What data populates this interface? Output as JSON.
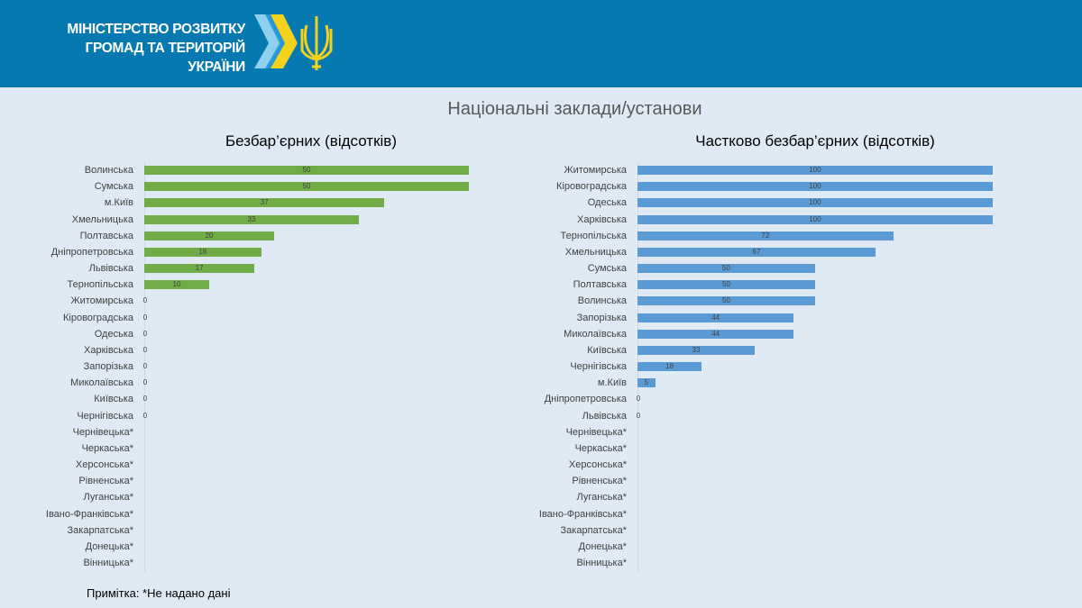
{
  "header": {
    "org_line1": "МІНІСТЕРСТВО РОЗВИТКУ",
    "org_line2": "ГРОМАД ТА ТЕРИТОРІЙ  УКРАЇНИ",
    "colors": {
      "bg": "#0679b0"
    }
  },
  "page_title": "Національні заклади/установи",
  "note": "Примітка: *Не надано дані",
  "chart_data": [
    {
      "type": "bar",
      "orientation": "horizontal",
      "title": "Безбар’єрних (відсотків)",
      "xlim": [
        0,
        50
      ],
      "color": "#70ad47",
      "categories": [
        "Волинська",
        "Сумська",
        "м.Київ",
        "Хмельницька",
        "Полтавська",
        "Дніпропетровська",
        "Львівська",
        "Тернопільська",
        "Житомирська",
        "Кіровоградська",
        "Одеська",
        "Харківська",
        "Запорізька",
        "Миколаївська",
        "Київська",
        "Чернігівська",
        "Чернівецька*",
        "Черкаська*",
        "Херсонська*",
        "Рівненська*",
        "Луганська*",
        "Івано-Франківська*",
        "Закарпатська*",
        "Донецька*",
        "Вінницька*"
      ],
      "values": [
        50,
        50,
        37,
        33,
        20,
        18,
        17,
        10,
        0,
        0,
        0,
        0,
        0,
        0,
        0,
        0,
        null,
        null,
        null,
        null,
        null,
        null,
        null,
        null,
        null
      ]
    },
    {
      "type": "bar",
      "orientation": "horizontal",
      "title": "Частково безбар’єрних (відсотків)",
      "xlim": [
        0,
        100
      ],
      "color": "#5b9bd5",
      "categories": [
        "Житомирська",
        "Кіровоградська",
        "Одеська",
        "Харківська",
        "Тернопільська",
        "Хмельницька",
        "Сумська",
        "Полтавська",
        "Волинська",
        "Запорізька",
        "Миколаївська",
        "Київська",
        "Чернігівська",
        "м.Київ",
        "Дніпропетровська",
        "Львівська",
        "Чернівецька*",
        "Черкаська*",
        "Херсонська*",
        "Рівненська*",
        "Луганська*",
        "Івано-Франківська*",
        "Закарпатська*",
        "Донецька*",
        "Вінницька*"
      ],
      "values": [
        100,
        100,
        100,
        100,
        72,
        67,
        50,
        50,
        50,
        44,
        44,
        33,
        18,
        5,
        0,
        0,
        null,
        null,
        null,
        null,
        null,
        null,
        null,
        null,
        null
      ]
    }
  ]
}
